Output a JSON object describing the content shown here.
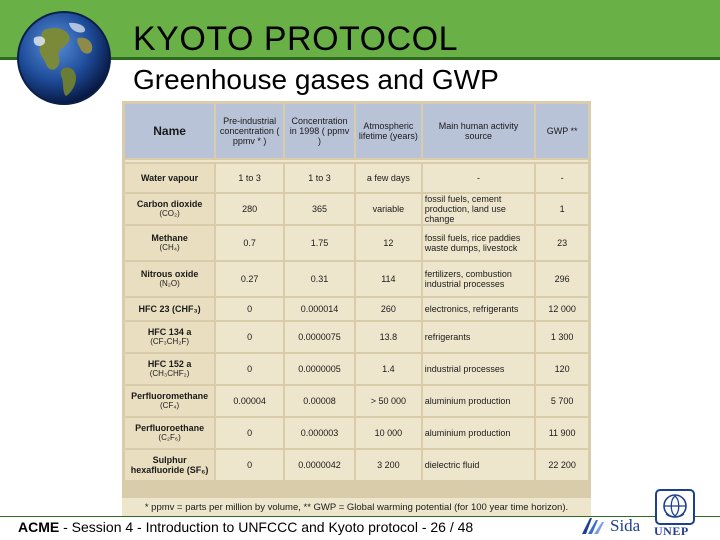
{
  "slide": {
    "title": "KYOTO PROTOCOL",
    "subtitle": "Greenhouse gases and GWP"
  },
  "table": {
    "headers": [
      "Name",
      "Pre-industrial concentration ( ppmv * )",
      "Concentration in 1998 ( ppmv )",
      "Atmospheric lifetime (years)",
      "Main human activity source",
      "GWP **"
    ],
    "rows": [
      {
        "name": "Water vapour",
        "formula": "",
        "pre": "1 to 3",
        "conc": "1 to 3",
        "life": "a few days",
        "source": "-",
        "gwp": "-"
      },
      {
        "name": "Carbon dioxide",
        "formula": "(CO₂)",
        "pre": "280",
        "conc": "365",
        "life": "variable",
        "source": "fossil fuels, cement production, land use change",
        "gwp": "1"
      },
      {
        "name": "Methane",
        "formula": "(CH₄)",
        "pre": "0.7",
        "conc": "1.75",
        "life": "12",
        "source": "fossil fuels, rice paddies waste dumps, livestock",
        "gwp": "23"
      },
      {
        "name": "Nitrous oxide",
        "formula": "(N₂O)",
        "pre": "0.27",
        "conc": "0.31",
        "life": "114",
        "source": "fertilizers, combustion industrial processes",
        "gwp": "296"
      },
      {
        "name": "HFC 23 (CHF₃)",
        "formula": "",
        "pre": "0",
        "conc": "0.000014",
        "life": "260",
        "source": "electronics, refrigerants",
        "gwp": "12 000"
      },
      {
        "name": "HFC 134 a",
        "formula": "(CF₃CH₂F)",
        "pre": "0",
        "conc": "0.0000075",
        "life": "13.8",
        "source": "refrigerants",
        "gwp": "1 300"
      },
      {
        "name": "HFC 152 a",
        "formula": "(CH₃CHF₂)",
        "pre": "0",
        "conc": "0.0000005",
        "life": "1.4",
        "source": "industrial processes",
        "gwp": "120"
      },
      {
        "name": "Perfluoromethane",
        "formula": "(CF₄)",
        "pre": "0.00004",
        "conc": "0.00008",
        "life": "> 50 000",
        "source": "aluminium production",
        "gwp": "5 700"
      },
      {
        "name": "Perfluoroethane",
        "formula": "(C₂F₆)",
        "pre": "0",
        "conc": "0.000003",
        "life": "10 000",
        "source": "aluminium production",
        "gwp": "11 900"
      },
      {
        "name": "Sulphur hexafluoride (SF₆)",
        "formula": "",
        "pre": "0",
        "conc": "0.0000042",
        "life": "3 200",
        "source": "dielectric fluid",
        "gwp": "22 200"
      }
    ],
    "footnote": "* ppmv = parts per million by volume, ** GWP = Global warming potential (for 100 year time horizon)."
  },
  "footer": {
    "acme": "ACME",
    "rest": " - Session 4 - Introduction to UNFCCC and Kyoto protocol - 26 / 48",
    "sida": "Sida",
    "unep": "UNEP"
  },
  "colors": {
    "accent_green": "#69b046",
    "header_blue": "#b9c3d8",
    "cell_beige": "#eee6cc"
  }
}
